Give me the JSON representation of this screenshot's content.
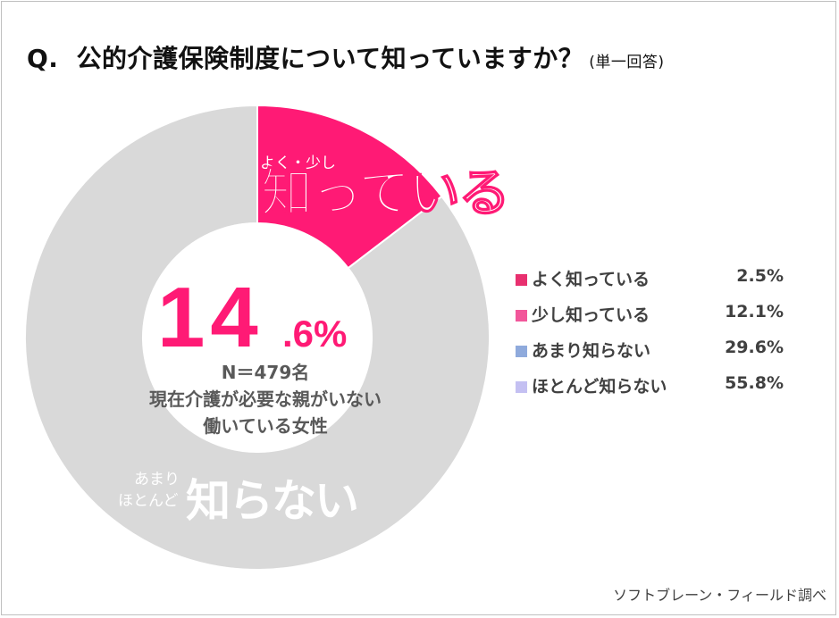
{
  "title": {
    "prefix": "Q.",
    "question": "公的介護保険制度について知っていますか？",
    "note": "(単一回答)"
  },
  "center": {
    "big_number": "14",
    "decimal": ".6%",
    "sample": "N＝479名",
    "desc_line1": "現在介護が必要な親がいない",
    "desc_line2": "働いている女性"
  },
  "callouts": {
    "know_small": "よく・少し",
    "know_big": "知っている",
    "dont_small_1": "あまり",
    "dont_small_2": "ほとんど",
    "dont_big": "知らない"
  },
  "colors": {
    "know_segment": "#ff1a75",
    "dont_segment": "#d9d9d9",
    "accent_text": "#ff1a75",
    "legend_swatches": [
      "#e8306f",
      "#f2569a",
      "#8faadc",
      "#c4c0f2"
    ]
  },
  "chart_data": {
    "type": "pie",
    "donut_segments": [
      {
        "label": "よく・少し知っている",
        "value": 14.6
      },
      {
        "label": "あまり・ほとんど知らない",
        "value": 85.4
      }
    ],
    "categories": [
      "よく知っている",
      "少し知っている",
      "あまり知らない",
      "ほとんど知らない"
    ],
    "values": [
      2.5,
      12.1,
      29.6,
      55.8
    ],
    "value_labels": [
      "2.5%",
      "12.1%",
      "29.6%",
      "55.8%"
    ],
    "legend_position": "right"
  },
  "source": "ソフトブレーン・フィールド調べ"
}
